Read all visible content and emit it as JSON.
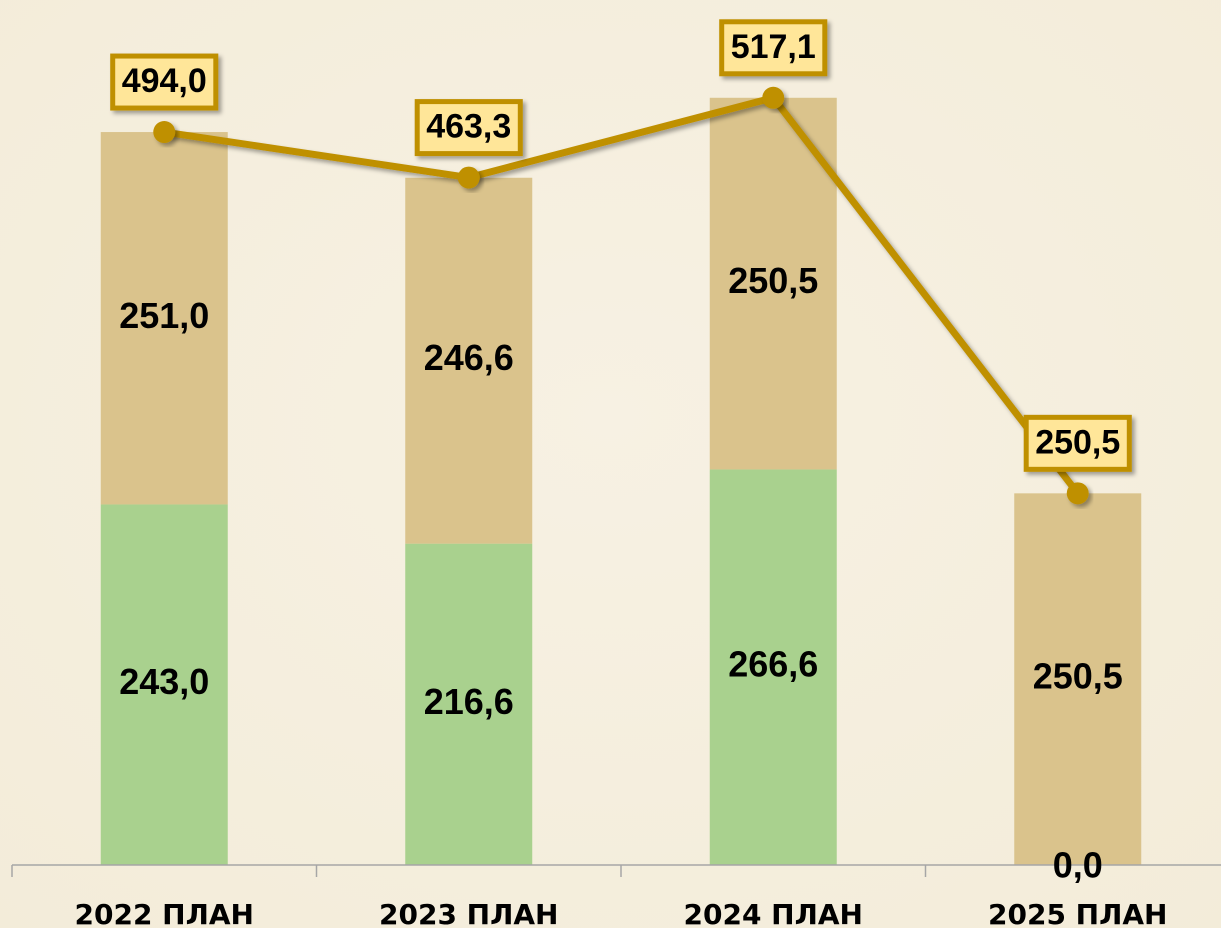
{
  "chart_data": {
    "type": "stacked-bar-line",
    "categories": [
      "2022 ПЛАН",
      "2023 ПЛАН",
      "2024 ПЛАН",
      "2025 ПЛАН"
    ],
    "series": [
      {
        "color": "#a9d18e",
        "values": [
          243.0,
          216.6,
          266.6,
          0.0
        ],
        "value_labels": [
          "243,0",
          "216,6",
          "266,6",
          "0,0"
        ]
      },
      {
        "color": "#dac38c",
        "values": [
          251.0,
          246.6,
          250.5,
          250.5
        ],
        "value_labels": [
          "251,0",
          "246,6",
          "250,5",
          "250,5"
        ]
      }
    ],
    "line": {
      "color": "#bf9000",
      "values": [
        494.0,
        463.3,
        517.1,
        250.5
      ],
      "value_labels": [
        "494,0",
        "463,3",
        "517,1",
        "250,5"
      ]
    },
    "ylim": [
      0,
      583
    ]
  }
}
